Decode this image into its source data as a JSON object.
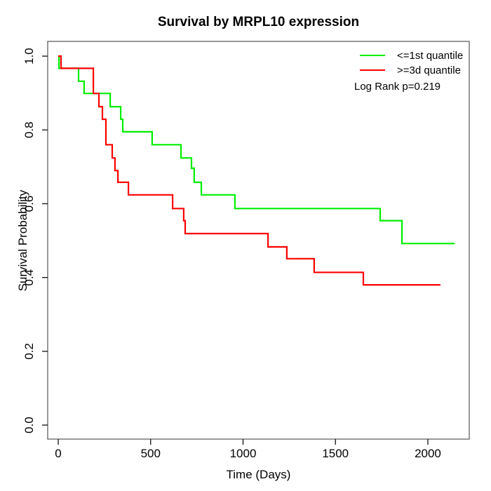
{
  "chart_data": {
    "type": "line",
    "subtype": "kaplan-meier-step",
    "title": "Survival by MRPL10 expression",
    "xlabel": "Time (Days)",
    "ylabel": "Survival Probability",
    "xlim": [
      -57,
      2224
    ],
    "ylim": [
      -0.038,
      1.04
    ],
    "x_ticks": [
      "0",
      "500",
      "1000",
      "1500",
      "2000"
    ],
    "y_ticks": [
      "0.0",
      "0.2",
      "0.4",
      "0.6",
      "0.8",
      "1.0"
    ],
    "grid": false,
    "legend_position": "top-right",
    "annotation": "Log Rank p=0.219",
    "frame_color": "#555555",
    "tick_color": "#111111",
    "series": [
      {
        "name": "<=1st quantile",
        "color": "#00ee00",
        "end_time": 2145,
        "steps": [
          [
            0,
            1.0
          ],
          [
            4,
            0.967
          ],
          [
            110,
            0.932
          ],
          [
            140,
            0.899
          ],
          [
            281,
            0.863
          ],
          [
            338,
            0.829
          ],
          [
            349,
            0.795
          ],
          [
            508,
            0.76
          ],
          [
            664,
            0.724
          ],
          [
            721,
            0.696
          ],
          [
            736,
            0.658
          ],
          [
            774,
            0.624
          ],
          [
            956,
            0.587
          ],
          [
            1742,
            0.554
          ],
          [
            1860,
            0.492
          ]
        ]
      },
      {
        "name": ">=3d quantile",
        "color": "#ff0000",
        "end_time": 2068,
        "steps": [
          [
            0,
            1.0
          ],
          [
            15,
            0.967
          ],
          [
            190,
            0.899
          ],
          [
            220,
            0.863
          ],
          [
            239,
            0.829
          ],
          [
            258,
            0.76
          ],
          [
            292,
            0.724
          ],
          [
            307,
            0.69
          ],
          [
            323,
            0.658
          ],
          [
            380,
            0.624
          ],
          [
            619,
            0.587
          ],
          [
            679,
            0.554
          ],
          [
            687,
            0.519
          ],
          [
            1135,
            0.483
          ],
          [
            1237,
            0.451
          ],
          [
            1385,
            0.414
          ],
          [
            1651,
            0.38
          ]
        ]
      }
    ]
  }
}
